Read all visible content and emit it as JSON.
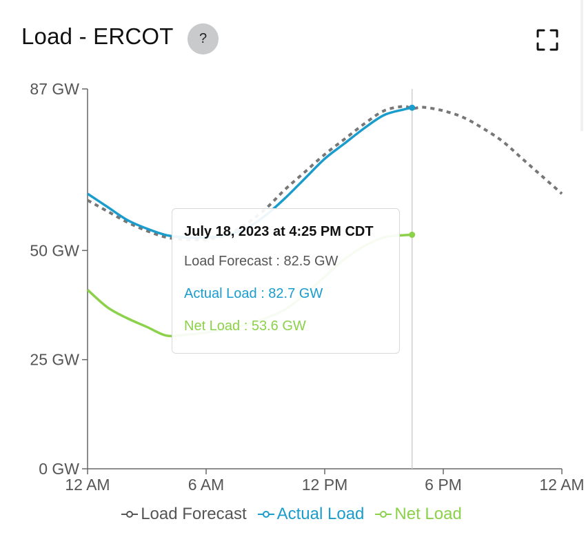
{
  "header": {
    "title": "Load - ERCOT",
    "help_label": "?"
  },
  "tooltip": {
    "title": "July 18, 2023 at 4:25 PM CDT",
    "rows": [
      {
        "text": "Load Forecast : 82.5 GW",
        "color": "#555555"
      },
      {
        "text": "Actual Load : 82.7 GW",
        "color": "#1a9ccc"
      },
      {
        "text": "Net Load : 53.6 GW",
        "color": "#8bd14a"
      }
    ]
  },
  "legend": [
    {
      "label": "Load Forecast",
      "color": "#555555"
    },
    {
      "label": "Actual Load",
      "color": "#1a9ccc"
    },
    {
      "label": "Net Load",
      "color": "#8bd14a"
    }
  ],
  "chart_data": {
    "type": "line",
    "title": "Load - ERCOT",
    "x_unit": "hours since 12 AM",
    "xlim": [
      0,
      24
    ],
    "x_ticks": [
      {
        "value": 0,
        "label": "12 AM"
      },
      {
        "value": 6,
        "label": "6 AM"
      },
      {
        "value": 12,
        "label": "12 PM"
      },
      {
        "value": 18,
        "label": "6 PM"
      },
      {
        "value": 24,
        "label": "12 AM"
      }
    ],
    "ylim": [
      0,
      87
    ],
    "y_ticks": [
      {
        "value": 0,
        "label": "0 GW"
      },
      {
        "value": 25,
        "label": "25 GW"
      },
      {
        "value": 50,
        "label": "50 GW"
      },
      {
        "value": 87,
        "label": "87 GW"
      }
    ],
    "cursor_x": 16.42,
    "legend_position": "bottom",
    "series": [
      {
        "name": "Load Forecast",
        "color": "#777777",
        "style": "dashed",
        "x": [
          0,
          1,
          2,
          3,
          4,
          5,
          6,
          7,
          8,
          9,
          10,
          11,
          12,
          13,
          14,
          15,
          16,
          16.42,
          17,
          18,
          19,
          20,
          21,
          22,
          23,
          24
        ],
        "y": [
          61.5,
          59,
          56.5,
          54.5,
          53,
          52.5,
          52.5,
          53.5,
          56,
          59.5,
          64,
          68,
          72,
          75.5,
          79,
          82,
          83,
          82.5,
          82.8,
          82,
          80.5,
          78,
          75,
          71,
          67,
          63
        ]
      },
      {
        "name": "Actual Load",
        "color": "#1a9ccc",
        "style": "solid",
        "x": [
          0,
          1,
          2,
          3,
          4,
          5,
          6,
          7,
          8,
          9,
          10,
          11,
          12,
          13,
          14,
          15,
          16,
          16.42
        ],
        "y": [
          63,
          60,
          57,
          55,
          53.5,
          53,
          53,
          53.5,
          55,
          58,
          62,
          66.5,
          71,
          74.5,
          78,
          81,
          82.3,
          82.7
        ]
      },
      {
        "name": "Net Load",
        "color": "#8bd14a",
        "style": "solid",
        "x": [
          0,
          1,
          2,
          3,
          4,
          5,
          6,
          7,
          8,
          9,
          10,
          11,
          12,
          13,
          14,
          15,
          16,
          16.42
        ],
        "y": [
          41,
          37,
          34.5,
          32.5,
          30.5,
          30.7,
          31.2,
          32,
          33,
          34.5,
          36.5,
          40,
          44,
          48,
          51,
          53,
          53.5,
          53.6
        ]
      }
    ]
  }
}
